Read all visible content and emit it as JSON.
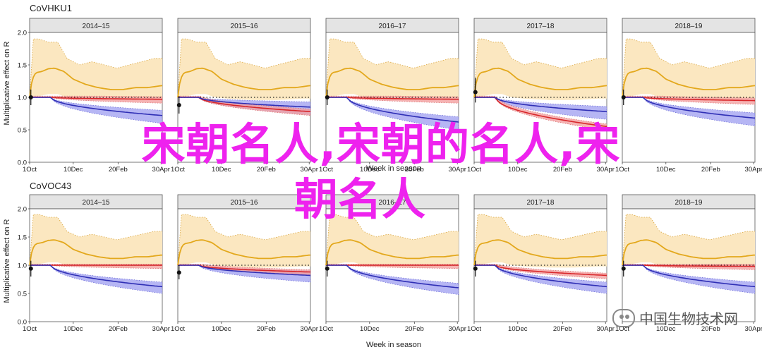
{
  "chart_data": {
    "type": "line",
    "ylabel": "Multiplicative effect on R",
    "xlabel": "Week in season",
    "x_ticks": [
      "1Oct",
      "10Dec",
      "20Feb",
      "30Apr"
    ],
    "x_tick_days": [
      0,
      70,
      142,
      211
    ],
    "x_range_days": [
      0,
      213
    ],
    "ylim": [
      0,
      2.0
    ],
    "y_ticks": [
      "0.0",
      "0.5",
      "1.0",
      "1.5",
      "2.0"
    ],
    "reference_line": 1.0,
    "colors": {
      "yellow_line": "#e3a81c",
      "yellow_band": "#fbe7c0",
      "red_line": "#d7262a",
      "red_band": "#f4a0a0",
      "blue_line": "#2f2fb5",
      "blue_band": "#a9a9f2",
      "strip": "#e4e4e4",
      "magenta_text": "#ee22ee"
    },
    "rows": [
      {
        "title": "CoVHKU1",
        "panels": [
          {
            "season": "2014–15",
            "point": {
              "x": 2,
              "y": 1.0,
              "lo": 0.88,
              "hi": 1.12
            },
            "blue_end": 0.72,
            "red_end": 0.97
          },
          {
            "season": "2015–16",
            "point": {
              "x": 2,
              "y": 0.88,
              "lo": 0.75,
              "hi": 1.02
            },
            "blue_end": 0.85,
            "red_end": 0.78
          },
          {
            "season": "2016–17",
            "point": {
              "x": 2,
              "y": 1.0,
              "lo": 0.88,
              "hi": 1.12
            },
            "blue_end": 0.62,
            "red_end": 0.97
          },
          {
            "season": "2017–18",
            "point": {
              "x": 2,
              "y": 1.08,
              "lo": 0.92,
              "hi": 1.3
            },
            "blue_end": 0.78,
            "red_end": 0.55
          },
          {
            "season": "2018–19",
            "point": {
              "x": 2,
              "y": 1.0,
              "lo": 0.88,
              "hi": 1.12
            },
            "blue_end": 0.68,
            "red_end": 0.95
          }
        ]
      },
      {
        "title": "CoVOC43",
        "panels": [
          {
            "season": "2014–15",
            "point": {
              "x": 2,
              "y": 0.94,
              "lo": 0.8,
              "hi": 1.08
            },
            "blue_end": 0.62,
            "red_end": 1.0
          },
          {
            "season": "2015–16",
            "point": {
              "x": 2,
              "y": 0.87,
              "lo": 0.75,
              "hi": 1.0
            },
            "blue_end": 0.82,
            "red_end": 0.88
          },
          {
            "season": "2016–17",
            "point": {
              "x": 2,
              "y": 0.94,
              "lo": 0.8,
              "hi": 1.08
            },
            "blue_end": 0.6,
            "red_end": 1.0
          },
          {
            "season": "2017–18",
            "point": {
              "x": 2,
              "y": 0.94,
              "lo": 0.8,
              "hi": 1.08
            },
            "blue_end": 0.62,
            "red_end": 0.82
          },
          {
            "season": "2018–19",
            "point": {
              "x": 2,
              "y": 0.94,
              "lo": 0.8,
              "hi": 1.08
            },
            "blue_end": 0.62,
            "red_end": 0.98
          }
        ]
      }
    ],
    "yellow_curve": {
      "x": [
        0,
        4,
        10,
        20,
        30,
        40,
        55,
        70,
        90,
        110,
        130,
        150,
        170,
        190,
        211
      ],
      "y": [
        1.0,
        1.28,
        1.38,
        1.4,
        1.44,
        1.45,
        1.4,
        1.28,
        1.2,
        1.15,
        1.12,
        1.12,
        1.15,
        1.15,
        1.18
      ]
    },
    "yellow_upper": {
      "x": [
        0,
        6,
        15,
        30,
        45,
        60,
        80,
        100,
        120,
        140,
        160,
        180,
        200,
        211
      ],
      "y": [
        1.0,
        1.9,
        1.9,
        1.85,
        1.85,
        1.6,
        1.5,
        1.55,
        1.5,
        1.45,
        1.5,
        1.55,
        1.6,
        1.6
      ]
    },
    "yellow_lower": {
      "x": [
        0,
        6,
        15,
        30,
        45,
        60,
        80,
        100,
        120,
        140,
        160,
        180,
        200,
        211
      ],
      "y": [
        1.0,
        1.0,
        1.02,
        1.05,
        1.05,
        1.0,
        0.98,
        0.97,
        0.96,
        0.96,
        0.96,
        0.97,
        0.98,
        0.98
      ]
    }
  },
  "overlay": {
    "line1": "宋朝名人,宋朝的名人,宋",
    "line2": "朝名人"
  },
  "watermark": {
    "text": "中国生物技术网"
  }
}
